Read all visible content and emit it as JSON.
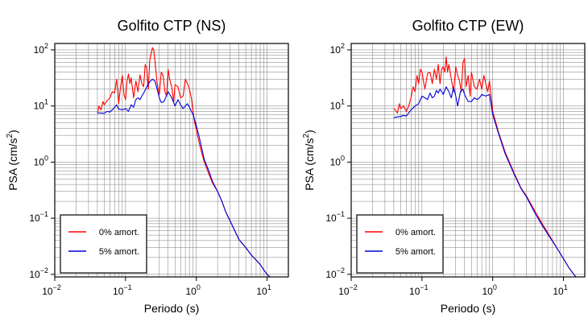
{
  "chart_data": [
    {
      "type": "line",
      "title": "Golfito CTP (NS)",
      "xlabel": "Periodo (s)",
      "ylabel_base": "PSA (cm/s",
      "ylabel_sup": "2",
      "ylabel_end": ")",
      "x_scale": "log",
      "y_scale": "log",
      "xlim": [
        0.01,
        20
      ],
      "ylim": [
        0.009,
        130
      ],
      "grid": true,
      "legend_position": "bottom-left",
      "x_ticks": [
        {
          "base": "10",
          "exp": "−2",
          "value": 0.01
        },
        {
          "base": "10",
          "exp": "−1",
          "value": 0.1
        },
        {
          "base": "10",
          "exp": "0",
          "value": 1
        },
        {
          "base": "10",
          "exp": "1",
          "value": 10
        }
      ],
      "y_ticks": [
        {
          "base": "10",
          "exp": "−2",
          "value": 0.01
        },
        {
          "base": "10",
          "exp": "−1",
          "value": 0.1
        },
        {
          "base": "10",
          "exp": "0",
          "value": 1
        },
        {
          "base": "10",
          "exp": "1",
          "value": 10
        },
        {
          "base": "10",
          "exp": "2",
          "value": 100
        }
      ],
      "series": [
        {
          "name": "0% amort.",
          "color": "#ff0000",
          "x": [
            0.04,
            0.042,
            0.045,
            0.048,
            0.05,
            0.055,
            0.06,
            0.065,
            0.07,
            0.075,
            0.08,
            0.085,
            0.09,
            0.095,
            0.1,
            0.105,
            0.11,
            0.115,
            0.12,
            0.13,
            0.14,
            0.15,
            0.16,
            0.17,
            0.18,
            0.19,
            0.2,
            0.21,
            0.22,
            0.23,
            0.24,
            0.25,
            0.26,
            0.27,
            0.28,
            0.3,
            0.32,
            0.34,
            0.36,
            0.38,
            0.4,
            0.42,
            0.45,
            0.48,
            0.5,
            0.55,
            0.6,
            0.65,
            0.7,
            0.75,
            0.8,
            0.85,
            0.9,
            0.95,
            1.0,
            1.1,
            1.2,
            1.3,
            1.5,
            1.7,
            2.0,
            2.3,
            2.6,
            3.0,
            3.5,
            4.0,
            5.0,
            6.0,
            7.0,
            8.0,
            9.0,
            10.0,
            11.0
          ],
          "y": [
            7.5,
            10,
            8.5,
            12,
            10.5,
            12.5,
            14,
            18,
            17,
            30,
            11,
            22,
            35,
            16,
            13,
            28,
            37,
            25,
            32,
            14,
            28,
            18,
            36,
            25,
            22,
            55,
            45,
            20,
            65,
            85,
            110,
            100,
            65,
            40,
            25,
            16,
            40,
            35,
            18,
            15,
            45,
            30,
            22,
            12,
            24,
            22,
            14,
            15,
            30,
            25,
            20,
            14,
            8,
            5,
            3.8,
            2.2,
            1.4,
            1.0,
            0.62,
            0.42,
            0.3,
            0.2,
            0.13,
            0.09,
            0.06,
            0.042,
            0.03,
            0.022,
            0.018,
            0.015,
            0.012,
            0.01,
            0.009
          ]
        },
        {
          "name": "5% amort.",
          "color": "#0000dd",
          "x": [
            0.04,
            0.045,
            0.05,
            0.055,
            0.06,
            0.065,
            0.07,
            0.075,
            0.08,
            0.09,
            0.1,
            0.11,
            0.12,
            0.13,
            0.14,
            0.15,
            0.16,
            0.17,
            0.18,
            0.2,
            0.22,
            0.24,
            0.26,
            0.28,
            0.3,
            0.32,
            0.35,
            0.4,
            0.45,
            0.5,
            0.55,
            0.6,
            0.65,
            0.7,
            0.75,
            0.8,
            0.9,
            1.0,
            1.1,
            1.2,
            1.3,
            1.5,
            1.7,
            2.0,
            2.3,
            2.6,
            3.0,
            3.5,
            4.0,
            5.0,
            6.0,
            7.0,
            8.0,
            9.0,
            10.0,
            11.0
          ],
          "y": [
            7.5,
            7.5,
            7.4,
            8,
            7.8,
            8.5,
            9.5,
            10.5,
            8.8,
            8.5,
            9,
            8,
            10.5,
            9.5,
            13,
            14,
            13,
            15,
            17,
            22,
            27,
            30,
            28,
            20,
            14,
            11.5,
            12,
            18,
            14,
            10,
            13,
            10.5,
            9,
            10,
            11,
            9.5,
            7.0,
            4.5,
            2.8,
            1.7,
            1.1,
            0.7,
            0.45,
            0.3,
            0.2,
            0.13,
            0.09,
            0.06,
            0.042,
            0.03,
            0.022,
            0.018,
            0.015,
            0.012,
            0.01,
            0.009
          ]
        }
      ]
    },
    {
      "type": "line",
      "title": "Golfito CTP (EW)",
      "xlabel": "Periodo (s)",
      "ylabel_base": "PSA (cm/s",
      "ylabel_sup": "2",
      "ylabel_end": ")",
      "x_scale": "log",
      "y_scale": "log",
      "xlim": [
        0.01,
        20
      ],
      "ylim": [
        0.009,
        130
      ],
      "grid": true,
      "legend_position": "bottom-left",
      "x_ticks": [
        {
          "base": "10",
          "exp": "−2",
          "value": 0.01
        },
        {
          "base": "10",
          "exp": "−1",
          "value": 0.1
        },
        {
          "base": "10",
          "exp": "0",
          "value": 1
        },
        {
          "base": "10",
          "exp": "1",
          "value": 10
        }
      ],
      "y_ticks": [
        {
          "base": "10",
          "exp": "−2",
          "value": 0.01
        },
        {
          "base": "10",
          "exp": "−1",
          "value": 0.1
        },
        {
          "base": "10",
          "exp": "0",
          "value": 1
        },
        {
          "base": "10",
          "exp": "1",
          "value": 10
        },
        {
          "base": "10",
          "exp": "2",
          "value": 100
        }
      ],
      "series": [
        {
          "name": "0% amort.",
          "color": "#ff0000",
          "x": [
            0.04,
            0.042,
            0.045,
            0.048,
            0.05,
            0.055,
            0.06,
            0.065,
            0.07,
            0.075,
            0.08,
            0.085,
            0.09,
            0.095,
            0.1,
            0.105,
            0.11,
            0.12,
            0.13,
            0.14,
            0.15,
            0.16,
            0.17,
            0.18,
            0.19,
            0.2,
            0.21,
            0.22,
            0.23,
            0.24,
            0.26,
            0.28,
            0.3,
            0.32,
            0.34,
            0.36,
            0.38,
            0.4,
            0.42,
            0.45,
            0.48,
            0.5,
            0.55,
            0.6,
            0.65,
            0.7,
            0.75,
            0.8,
            0.85,
            0.9,
            1.0,
            1.2,
            1.5,
            2.0,
            2.5,
            3.0,
            4.0,
            5.0,
            6.0,
            8.0,
            10.0,
            12.0,
            14.0,
            15.0
          ],
          "y": [
            9,
            8.5,
            7.5,
            11,
            9,
            10,
            8,
            10,
            14,
            22,
            18,
            35,
            25,
            45,
            40,
            28,
            20,
            38,
            40,
            25,
            45,
            30,
            55,
            25,
            45,
            50,
            40,
            75,
            40,
            55,
            30,
            18,
            50,
            35,
            28,
            18,
            60,
            70,
            22,
            35,
            15,
            40,
            22,
            20,
            30,
            20,
            35,
            25,
            18,
            28,
            8,
            3.5,
            1.5,
            0.65,
            0.35,
            0.25,
            0.13,
            0.08,
            0.055,
            0.03,
            0.019,
            0.013,
            0.01,
            0.009
          ]
        },
        {
          "name": "5% amort.",
          "color": "#0000dd",
          "x": [
            0.04,
            0.045,
            0.05,
            0.055,
            0.06,
            0.065,
            0.07,
            0.08,
            0.09,
            0.1,
            0.11,
            0.12,
            0.13,
            0.14,
            0.15,
            0.16,
            0.17,
            0.18,
            0.19,
            0.2,
            0.22,
            0.24,
            0.26,
            0.28,
            0.3,
            0.32,
            0.35,
            0.38,
            0.4,
            0.45,
            0.5,
            0.55,
            0.6,
            0.65,
            0.7,
            0.8,
            0.9,
            1.0,
            1.2,
            1.5,
            2.0,
            2.5,
            3.0,
            4.0,
            5.0,
            6.0,
            8.0,
            10.0,
            12.0,
            14.0,
            15.0
          ],
          "y": [
            6.2,
            6.4,
            6.5,
            6.8,
            6.6,
            7.5,
            8.5,
            10,
            11,
            15,
            14,
            13,
            17,
            14,
            15,
            19,
            17,
            20,
            18,
            16,
            22,
            18,
            14,
            22,
            15,
            10,
            18,
            20,
            16,
            12,
            12,
            14,
            13,
            14,
            16,
            15,
            16,
            7,
            3.3,
            1.4,
            0.62,
            0.34,
            0.24,
            0.12,
            0.075,
            0.052,
            0.03,
            0.019,
            0.013,
            0.01,
            0.009
          ]
        }
      ]
    }
  ]
}
